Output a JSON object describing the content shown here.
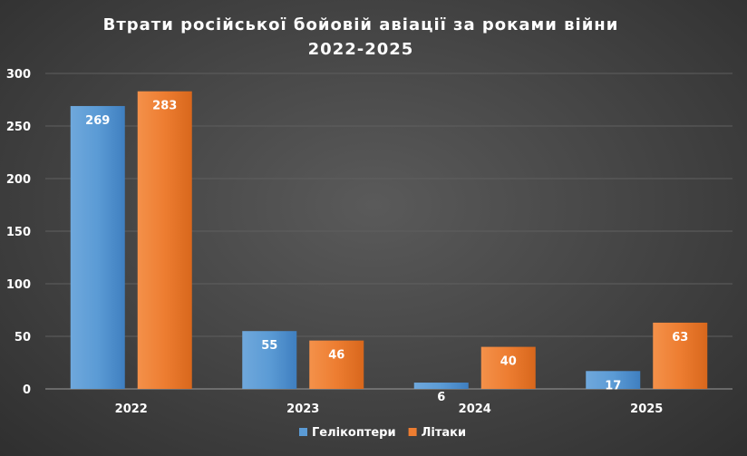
{
  "chart_data": {
    "type": "bar",
    "title": "Втрати російської бойовій авіації за роками війни",
    "subtitle": "2022-2025",
    "categories": [
      "2022",
      "2023",
      "2024",
      "2025"
    ],
    "series": [
      {
        "name": "Гелікоптери",
        "values": [
          269,
          55,
          6,
          17
        ],
        "color": "#5b9bd5"
      },
      {
        "name": "Літаки",
        "values": [
          283,
          46,
          40,
          63
        ],
        "color": "#ed7d31"
      }
    ],
    "ylim": [
      0,
      300
    ],
    "yticks": [
      0,
      50,
      100,
      150,
      200,
      250,
      300
    ],
    "grid": true,
    "legend": "bottom"
  }
}
